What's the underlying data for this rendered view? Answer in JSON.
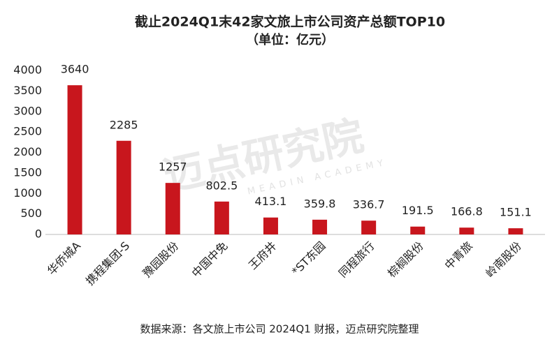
{
  "chart_data": {
    "type": "bar",
    "title": "截止2024Q1末42家文旅上市公司资产总额TOP10",
    "subtitle": "（单位：亿元）",
    "categories": [
      "华侨城A",
      "携程集团-S",
      "豫园股份",
      "中国中免",
      "王府井",
      "*ST东园",
      "同程旅行",
      "棕榈股份",
      "中青旅",
      "岭南股份"
    ],
    "values": [
      3640,
      2285,
      1257,
      802.5,
      413.1,
      359.8,
      336.7,
      191.5,
      166.8,
      151.1
    ],
    "color": "#c8161d",
    "ylim": [
      0,
      4000
    ],
    "yticks": [
      0,
      500,
      1000,
      1500,
      2000,
      2500,
      3000,
      3500,
      4000
    ],
    "grid": false,
    "source": "数据来源：各文旅上市公司 2024Q1 财报，迈点研究院整理",
    "watermark": "迈点研究院",
    "watermark_en": "MEADIN ACADEMY"
  }
}
